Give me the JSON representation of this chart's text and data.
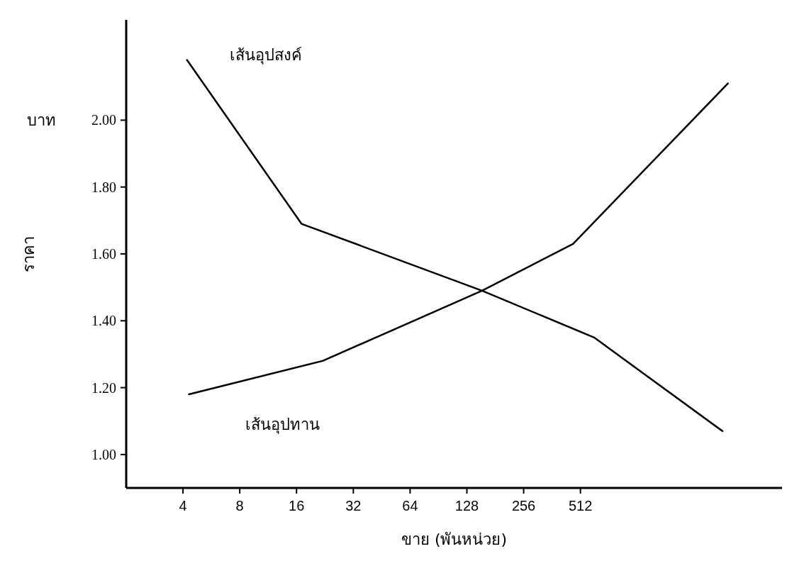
{
  "chart_data": {
    "type": "line",
    "xlabel": "ขาย (พันหน่วย)",
    "ylabel": "ราคา",
    "annotations": [
      "บาท"
    ],
    "log": "x",
    "xlim": [
      2,
      6000
    ],
    "xticks": [
      4,
      8,
      16,
      32,
      64,
      128,
      256,
      512
    ],
    "ylim": [
      0.9,
      2.3
    ],
    "yticks": [
      {
        "value": 1,
        "label": "1.00"
      },
      {
        "value": 1.2,
        "label": "1.20"
      },
      {
        "value": 1.4,
        "label": "1.40"
      },
      {
        "value": 1.6,
        "label": "1.60"
      },
      {
        "value": 1.8,
        "label": "1.80"
      },
      {
        "value": 2,
        "label": "2.00"
      }
    ],
    "grid": false,
    "marker": "none",
    "line_style": "solid",
    "series": [
      {
        "name": "เส้นอุปสงค์",
        "color": "#000000",
        "x": [
          4.2,
          17,
          154,
          605,
          2900
        ],
        "values": [
          2.18,
          1.69,
          1.49,
          1.35,
          1.07
        ]
      },
      {
        "name": "เส้นอุปทาน",
        "color": "#000000",
        "x": [
          4.3,
          22,
          154,
          468,
          3100
        ],
        "values": [
          1.18,
          1.28,
          1.49,
          1.63,
          2.11
        ]
      }
    ]
  }
}
